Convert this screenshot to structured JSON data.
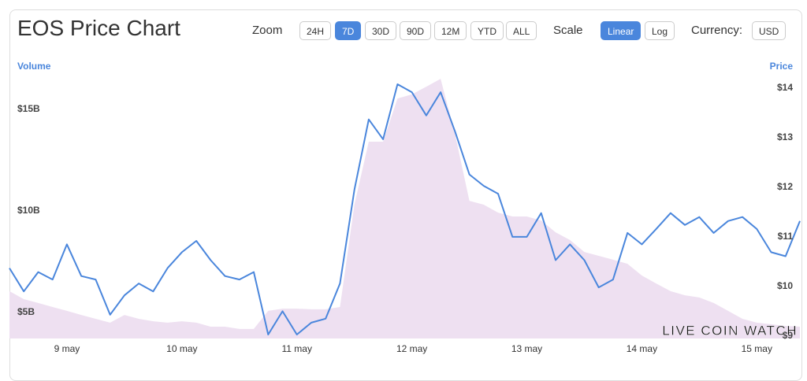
{
  "controls": {
    "zoom_label": "Zoom",
    "zoom_options": [
      "24H",
      "7D",
      "30D",
      "90D",
      "12M",
      "YTD",
      "ALL"
    ],
    "zoom_selected": 1,
    "scale_label": "Scale",
    "scale_options": [
      "Linear",
      "Log"
    ],
    "scale_selected": 0,
    "currency_label": "Currency:",
    "currency": "USD",
    "watermark": "LIVE COIN WATCH"
  },
  "chart_data": {
    "type": "price-volume",
    "title": "EOS Price Chart",
    "y_label": "Volume",
    "y2_label": "Price",
    "categories": [
      null,
      null,
      null,
      null,
      "9 may",
      null,
      null,
      null,
      null,
      null,
      null,
      null,
      "10 may",
      null,
      null,
      null,
      null,
      null,
      null,
      null,
      "11 may",
      null,
      null,
      null,
      null,
      null,
      null,
      null,
      "12 may",
      null,
      null,
      null,
      null,
      null,
      null,
      null,
      "13 may",
      null,
      null,
      null,
      null,
      null,
      null,
      null,
      "14 may",
      null,
      null,
      null,
      null,
      null,
      null,
      null,
      "15 may",
      null,
      null,
      null
    ],
    "series": [
      {
        "name": "Volume",
        "color": "#eee0f1",
        "values": [
          6050000000,
          5660000000,
          5470000000,
          5270000000,
          5080000000,
          4880000000,
          4690000000,
          4500000000,
          4880000000,
          4690000000,
          4570000000,
          4500000000,
          4570000000,
          4500000000,
          4300000000,
          4300000000,
          4190000000,
          4190000000,
          5080000000,
          5190000000,
          5190000000,
          5160000000,
          5160000000,
          5270000000,
          10310000000,
          13410000000,
          13410000000,
          15540000000,
          15740000000,
          16120000000,
          16510000000,
          13800000000,
          10500000000,
          10310000000,
          9920000000,
          9730000000,
          9730000000,
          9530000000,
          8950000000,
          8570000000,
          7980000000,
          7790000000,
          7600000000,
          7400000000,
          6820000000,
          6430000000,
          6050000000,
          5850000000,
          5740000000,
          5470000000,
          5080000000,
          4690000000,
          4500000000,
          4420000000,
          4340000000,
          4300000000
        ]
      },
      {
        "name": "Price",
        "color": "#4a86dc",
        "axis": "y2",
        "values": [
          10.37,
          9.9,
          10.29,
          10.14,
          10.85,
          10.21,
          10.14,
          9.43,
          9.82,
          10.06,
          9.9,
          10.37,
          10.69,
          10.92,
          10.53,
          10.21,
          10.14,
          10.29,
          9.03,
          9.5,
          9.03,
          9.27,
          9.35,
          10.06,
          11.95,
          13.37,
          12.97,
          14.08,
          13.92,
          13.45,
          13.92,
          13.13,
          12.26,
          12.03,
          11.87,
          11.0,
          11.0,
          11.48,
          10.53,
          10.85,
          10.53,
          9.98,
          10.14,
          11.08,
          10.85,
          11.16,
          11.48,
          11.24,
          11.4,
          11.08,
          11.32,
          11.4,
          11.16,
          10.69,
          10.61,
          11.32
        ]
      }
    ],
    "ylim": [
      3720000000,
      16900000000
    ],
    "yticks": [
      {
        "value": 5000000000,
        "label": "$5B"
      },
      {
        "value": 10000000000,
        "label": "$10B"
      },
      {
        "value": 15000000000,
        "label": "$15B"
      }
    ],
    "y2lim": [
      8.95,
      14.35
    ],
    "y2ticks": [
      {
        "value": 9,
        "label": "$9"
      },
      {
        "value": 10,
        "label": "$10"
      },
      {
        "value": 11,
        "label": "$11"
      },
      {
        "value": 12,
        "label": "$12"
      },
      {
        "value": 13,
        "label": "$13"
      },
      {
        "value": 14,
        "label": "$14"
      }
    ]
  }
}
